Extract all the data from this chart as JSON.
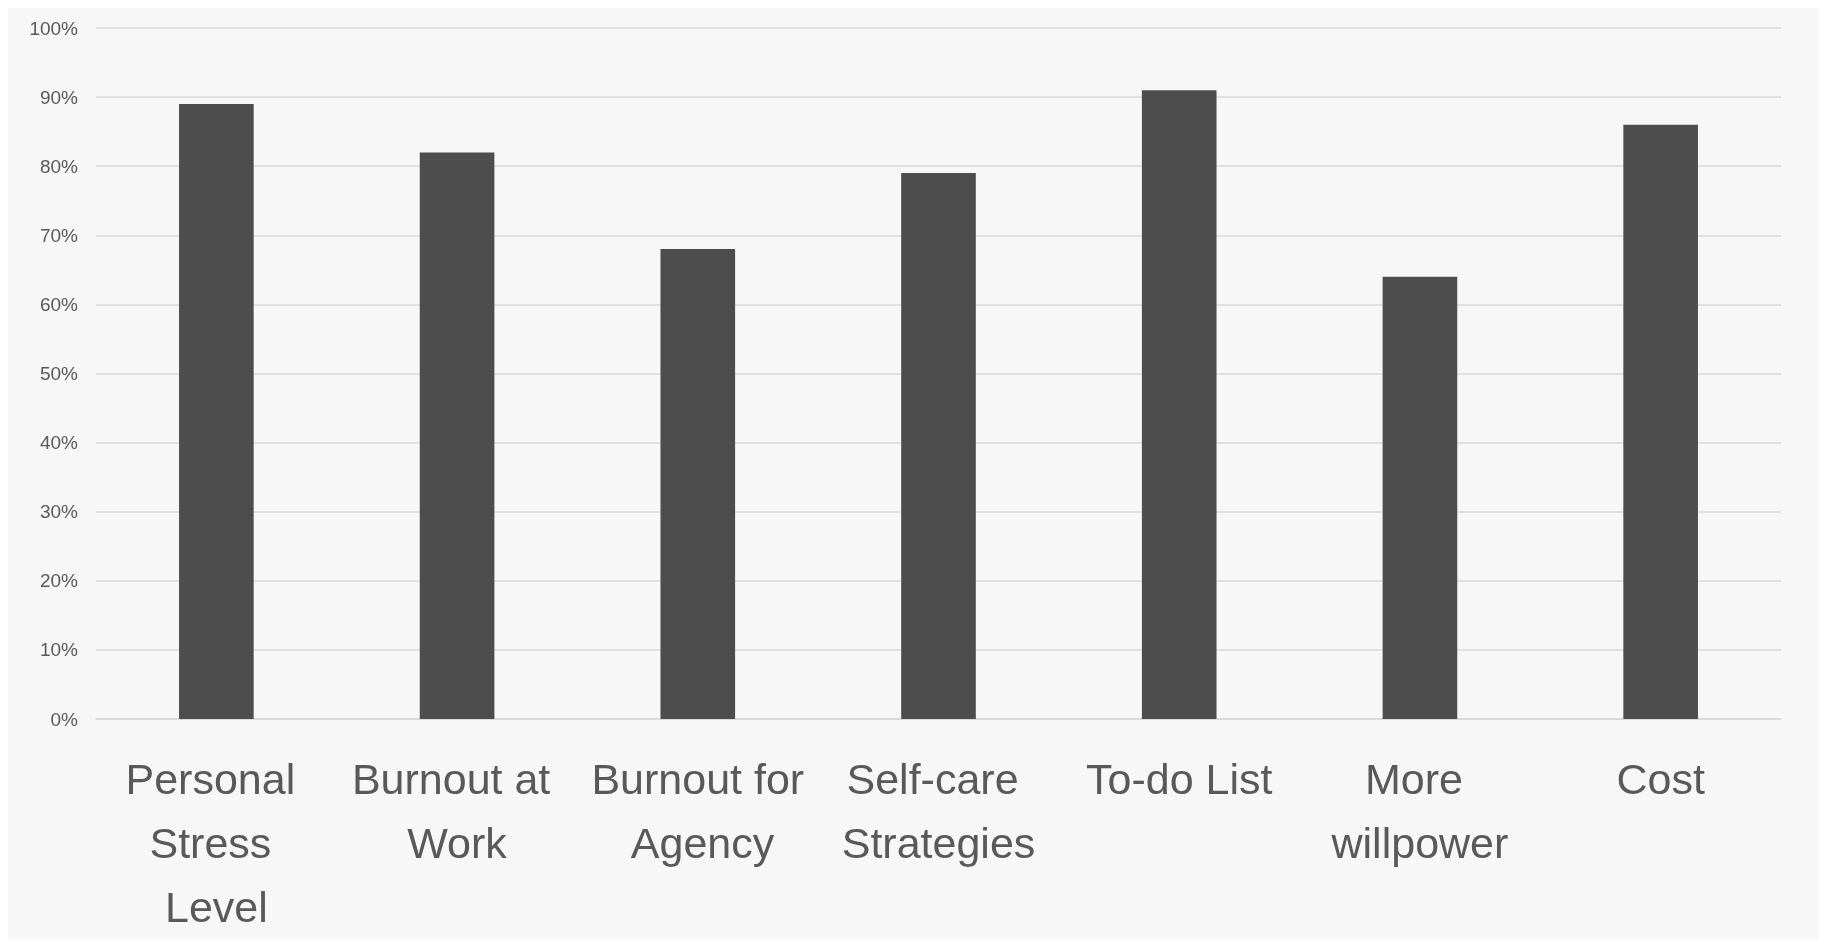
{
  "chart_data": {
    "type": "bar",
    "categories": [
      "Personal Stress Level",
      "Burnout at Work",
      "Burnout for Agency",
      "Self-care Strategies",
      "To-do List",
      "More willpower",
      "Cost"
    ],
    "values": [
      89,
      82,
      68,
      79,
      91,
      64,
      86
    ],
    "color": "#4d4d4d",
    "ylim": [
      0,
      100
    ],
    "yticks": [
      {
        "value": 0,
        "label": "0%"
      },
      {
        "value": 10,
        "label": "10%"
      },
      {
        "value": 20,
        "label": "20%"
      },
      {
        "value": 30,
        "label": "30%"
      },
      {
        "value": 40,
        "label": "40%"
      },
      {
        "value": 50,
        "label": "50%"
      },
      {
        "value": 60,
        "label": "60%"
      },
      {
        "value": 70,
        "label": "70%"
      },
      {
        "value": 80,
        "label": "80%"
      },
      {
        "value": 90,
        "label": "90%"
      },
      {
        "value": 100,
        "label": "100%"
      }
    ],
    "grid": true
  }
}
